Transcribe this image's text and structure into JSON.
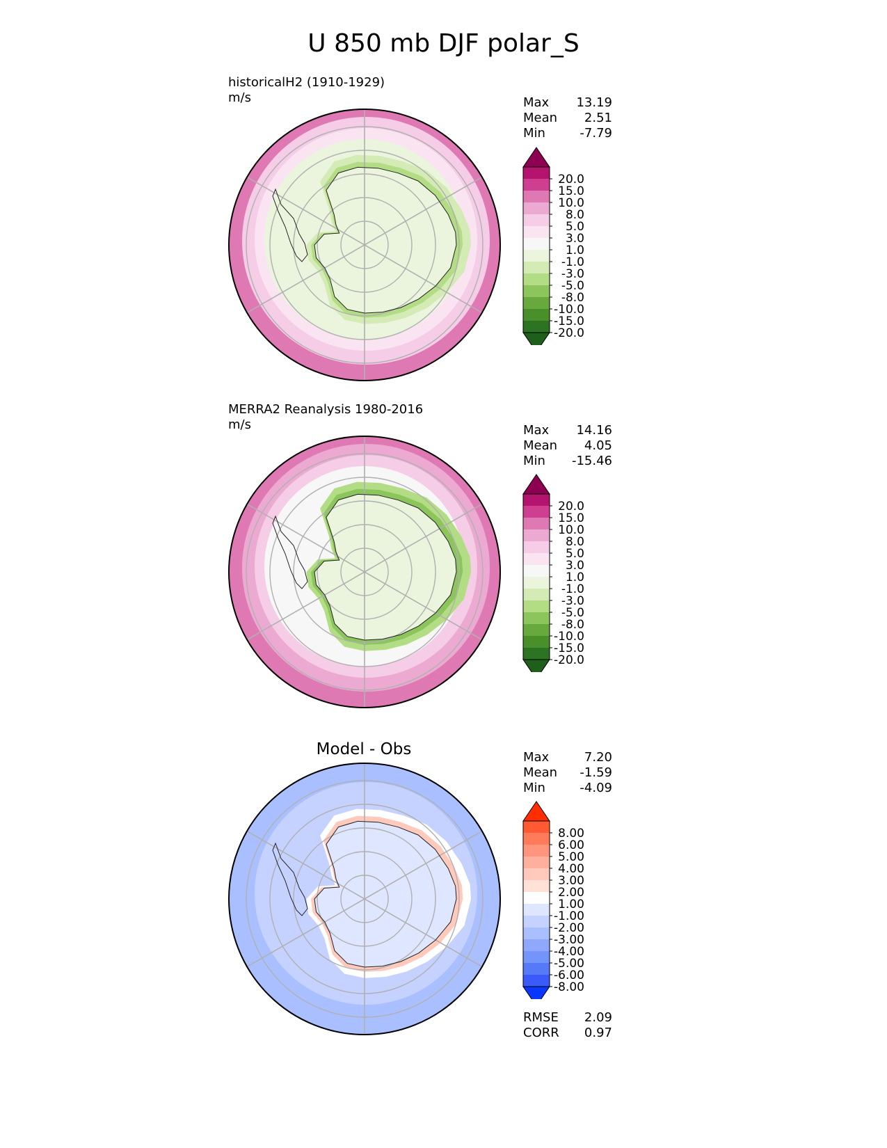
{
  "title": "U 850 mb DJF polar_S",
  "panels": [
    {
      "name": "model",
      "title": "historicalH2 (1910-1929)",
      "units": "m/s",
      "stats": [
        {
          "label": "Max",
          "value": "13.19"
        },
        {
          "label": "Mean",
          "value": "2.51"
        },
        {
          "label": "Min",
          "value": "-7.79"
        }
      ]
    },
    {
      "name": "obs",
      "title": "MERRA2 Reanalysis 1980-2016",
      "units": "m/s",
      "stats": [
        {
          "label": "Max",
          "value": "14.16"
        },
        {
          "label": "Mean",
          "value": "4.05"
        },
        {
          "label": "Min",
          "value": "-15.46"
        }
      ]
    },
    {
      "name": "diff",
      "title": "Model - Obs",
      "stats": [
        {
          "label": "Max",
          "value": "7.20"
        },
        {
          "label": "Mean",
          "value": "-1.59"
        },
        {
          "label": "Min",
          "value": "-4.09"
        }
      ],
      "metrics": [
        {
          "label": "RMSE",
          "value": "2.09"
        },
        {
          "label": "CORR",
          "value": "0.97"
        }
      ]
    }
  ],
  "colorbars": {
    "field": {
      "ticks": [
        "20.0",
        "15.0",
        "10.0",
        "8.0",
        "5.0",
        "3.0",
        "1.0",
        "-1.0",
        "-3.0",
        "-5.0",
        "-8.0",
        "-10.0",
        "-15.0",
        "-20.0"
      ],
      "colors": [
        "#8e0152",
        "#b4146e",
        "#cf3f8f",
        "#df79b4",
        "#ecaad2",
        "#f5cde6",
        "#fae4f1",
        "#f7f7f7",
        "#ebf5dd",
        "#d4ebb6",
        "#b3dd84",
        "#8cc55c",
        "#68a93d",
        "#49902b",
        "#2c7424",
        "#1f5f1c"
      ]
    },
    "diff": {
      "ticks": [
        "8.00",
        "6.00",
        "5.00",
        "4.00",
        "3.00",
        "2.00",
        "1.00",
        "-1.00",
        "-2.00",
        "-3.00",
        "-4.00",
        "-5.00",
        "-6.00",
        "-8.00"
      ],
      "colors": [
        "#ff2d00",
        "#ff5a33",
        "#ff7b5a",
        "#ff957d",
        "#ffaf9d",
        "#ffc9bc",
        "#ffe1d8",
        "#ffffff",
        "#dfe6ff",
        "#c5d2ff",
        "#aabfff",
        "#8fa8fb",
        "#7394f8",
        "#5579f7",
        "#3a5bf9",
        "#0a37ff"
      ]
    }
  },
  "chart_data": [
    {
      "type": "heatmap",
      "projection": "south-polar-stereographic",
      "title": "historicalH2 (1910-1929)",
      "units": "m/s",
      "variable": "U 850 mb DJF",
      "levels": [
        -20,
        -15,
        -10,
        -8,
        -5,
        -3,
        -1,
        1,
        3,
        5,
        8,
        10,
        15,
        20
      ],
      "stats": {
        "max": 13.19,
        "mean": 2.51,
        "min": -7.79
      },
      "pattern": {
        "continent_interior": 0,
        "coastal_ring": -4,
        "subpolar_ring": 0.5,
        "midlatitude_outer_ring": 10
      }
    },
    {
      "type": "heatmap",
      "projection": "south-polar-stereographic",
      "title": "MERRA2 Reanalysis 1980-2016",
      "units": "m/s",
      "variable": "U 850 mb DJF",
      "levels": [
        -20,
        -15,
        -10,
        -8,
        -5,
        -3,
        -1,
        1,
        3,
        5,
        8,
        10,
        15,
        20
      ],
      "stats": {
        "max": 14.16,
        "mean": 4.05,
        "min": -15.46
      },
      "pattern": {
        "continent_interior": 0,
        "coastal_ring": -8,
        "subpolar_ring": 1,
        "midlatitude_outer_ring": 12
      }
    },
    {
      "type": "heatmap",
      "projection": "south-polar-stereographic",
      "title": "Model - Obs",
      "levels": [
        -8,
        -6,
        -5,
        -4,
        -3,
        -2,
        -1,
        1,
        2,
        3,
        4,
        5,
        6,
        8
      ],
      "stats": {
        "max": 7.2,
        "mean": -1.59,
        "min": -4.09
      },
      "metrics": {
        "rmse": 2.09,
        "corr": 0.97
      },
      "pattern": {
        "continent_interior": 0,
        "coastal_ring": 3,
        "subpolar_ring": -2,
        "midlatitude_outer_ring": -3
      }
    }
  ]
}
